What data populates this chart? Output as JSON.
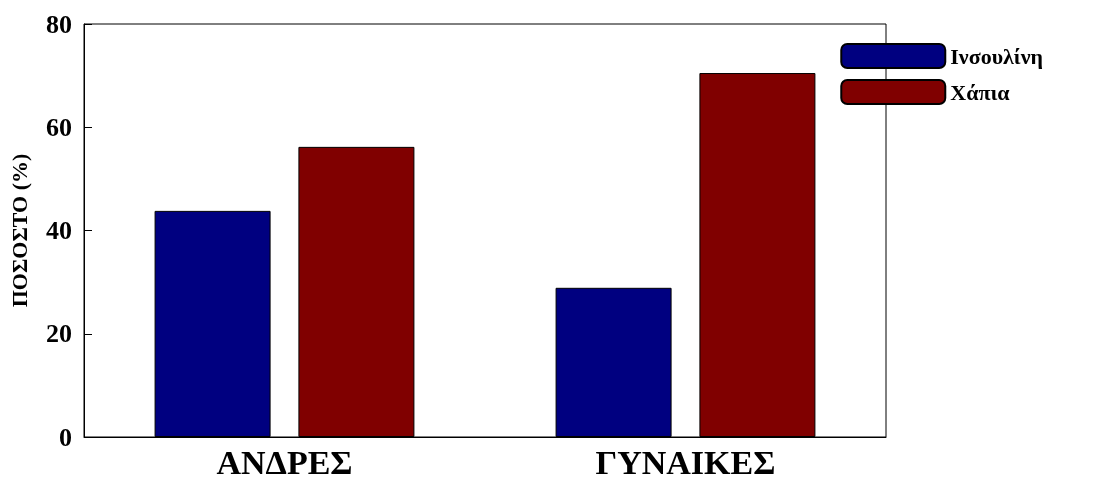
{
  "chart_data": {
    "type": "bar",
    "ylabel": "ΠΟΣΟΣΤΟ (%)",
    "categories": [
      "ΑΝΔΡΕΣ",
      "ΓΥΝΑΙΚΕΣ"
    ],
    "series": [
      {
        "name": "Ινσουλίνη",
        "color": "#000080",
        "values": [
          43.8,
          28.9
        ]
      },
      {
        "name": "Χάπια",
        "color": "#800000",
        "values": [
          56.2,
          70.5
        ]
      }
    ],
    "ylim": [
      0,
      80
    ],
    "yticks": [
      0,
      20,
      40,
      60,
      80
    ],
    "grid": false,
    "legend": "top right"
  }
}
